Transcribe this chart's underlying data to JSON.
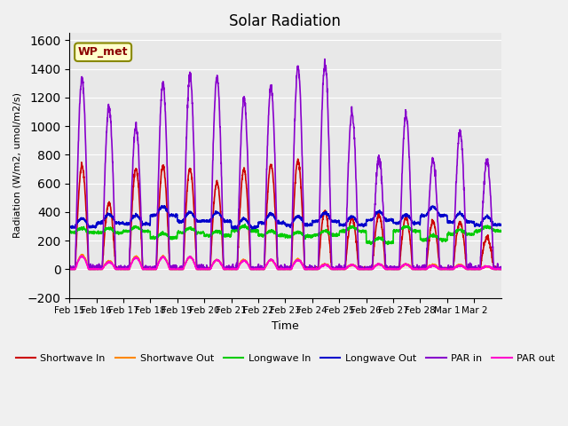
{
  "title": "Solar Radiation",
  "ylabel": "Radiation (W/m2, umol/m2/s)",
  "xlabel": "Time",
  "ylim": [
    -200,
    1650
  ],
  "yticks": [
    -200,
    0,
    200,
    400,
    600,
    800,
    1000,
    1200,
    1400,
    1600
  ],
  "bg_color": "#e8e8e8",
  "plot_bg_color": "#e8e8e8",
  "watermark": "WP_met",
  "series": {
    "shortwave_in": {
      "color": "#cc0000",
      "label": "Shortwave In",
      "lw": 1.2
    },
    "shortwave_out": {
      "color": "#ff8800",
      "label": "Shortwave Out",
      "lw": 1.2
    },
    "longwave_in": {
      "color": "#00cc00",
      "label": "Longwave In",
      "lw": 1.2
    },
    "longwave_out": {
      "color": "#0000cc",
      "label": "Longwave Out",
      "lw": 1.2
    },
    "par_in": {
      "color": "#8800cc",
      "label": "PAR in",
      "lw": 1.2
    },
    "par_out": {
      "color": "#ff00cc",
      "label": "PAR out",
      "lw": 1.2
    }
  },
  "x_tick_labels": [
    "Feb 15",
    "Feb 16",
    "Feb 17",
    "Feb 18",
    "Feb 19",
    "Feb 20",
    "Feb 21",
    "Feb 22",
    "Feb 23",
    "Feb 24",
    "Feb 25",
    "Feb 26",
    "Feb 27",
    "Feb 28",
    "Mar 1",
    "Mar 2"
  ],
  "num_days": 16,
  "points_per_day": 144,
  "par_in_peaks": [
    1330,
    1130,
    1000,
    1300,
    1350,
    1340,
    1190,
    1270,
    1410,
    1440,
    1090,
    780,
    1080,
    760,
    960,
    750
  ],
  "sw_in_peaks": [
    720,
    460,
    700,
    720,
    700,
    605,
    700,
    730,
    760,
    400,
    360,
    380,
    360,
    330,
    330,
    220
  ],
  "sw_out_peaks": [
    100,
    55,
    90,
    90,
    85,
    65,
    65,
    65,
    70,
    35,
    30,
    35,
    35,
    30,
    30,
    20
  ],
  "par_out_peaks": [
    90,
    50,
    80,
    85,
    85,
    65,
    60,
    65,
    65,
    30,
    30,
    35,
    35,
    25,
    25,
    20
  ],
  "lw_in_base": 250,
  "lw_out_base": 330
}
